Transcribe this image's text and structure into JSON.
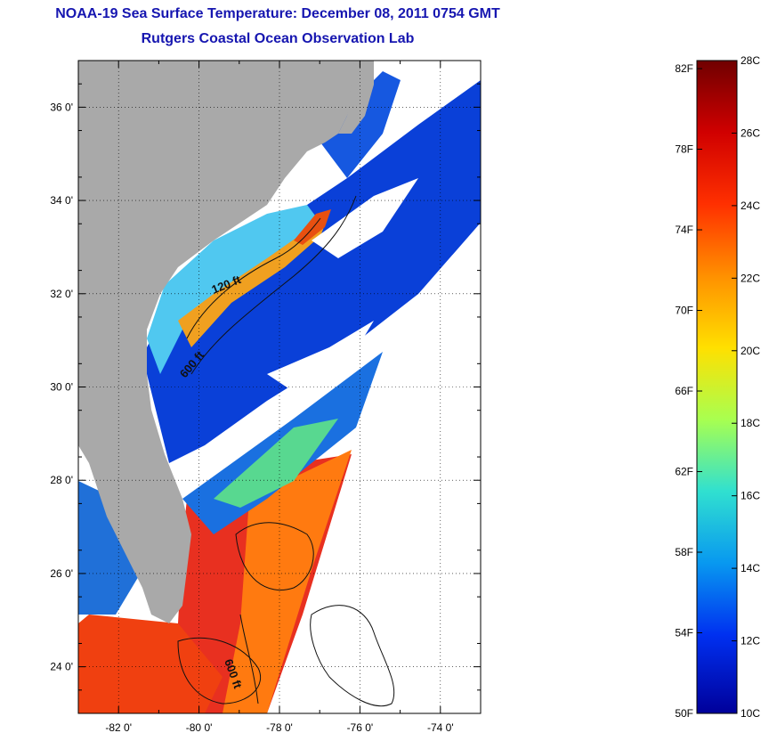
{
  "title": {
    "line1": "NOAA-19 Sea Surface Temperature:  December 08, 2011 0754 GMT",
    "line2": "Rutgers Coastal Ocean Observation Lab"
  },
  "map": {
    "lon_range": [
      -83,
      -73
    ],
    "lat_range": [
      23,
      37
    ],
    "lat_ticks": [
      {
        "value": 24,
        "label": "24 0'"
      },
      {
        "value": 26,
        "label": "26 0'"
      },
      {
        "value": 28,
        "label": "28 0'"
      },
      {
        "value": 30,
        "label": "30 0'"
      },
      {
        "value": 32,
        "label": "32 0'"
      },
      {
        "value": 34,
        "label": "34 0'"
      },
      {
        "value": 36,
        "label": "36 0'"
      }
    ],
    "lon_ticks": [
      {
        "value": -82,
        "label": "-82 0'"
      },
      {
        "value": -80,
        "label": "-80 0'"
      },
      {
        "value": -78,
        "label": "-78 0'"
      },
      {
        "value": -76,
        "label": "-76 0'"
      },
      {
        "value": -74,
        "label": "-74 0'"
      }
    ],
    "contour_labels": {
      "shelf_120": "120 ft",
      "shelf_600_north": "600 ft",
      "shelf_600_south": "600 ft"
    },
    "colors": {
      "land": "#a9a9a9",
      "no_data": "#ffffff",
      "grid": "#000000"
    }
  },
  "colorbar": {
    "celsius": [
      "28C",
      "26C",
      "24C",
      "22C",
      "20C",
      "18C",
      "16C",
      "14C",
      "12C",
      "10C"
    ],
    "fahrenheit": [
      "82F",
      "78F",
      "74F",
      "70F",
      "66F",
      "62F",
      "58F",
      "54F",
      "50F"
    ],
    "colors": [
      "#800000",
      "#e00000",
      "#ff6a00",
      "#ffc800",
      "#c8ff38",
      "#40f0c0",
      "#10a8f0",
      "#0040ff",
      "#0000a0"
    ]
  }
}
